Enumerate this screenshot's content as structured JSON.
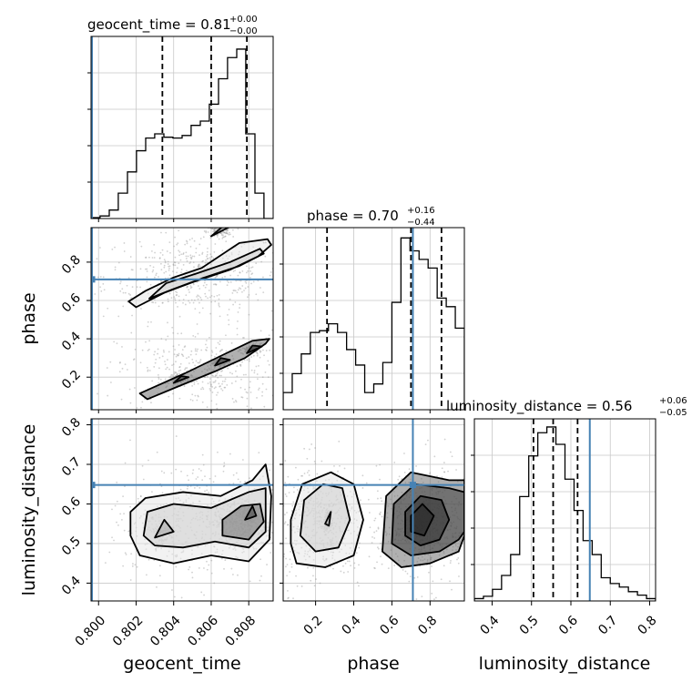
{
  "chart_data": {
    "type": "corner",
    "parameters": [
      "geocent_time",
      "phase",
      "luminosity_distance"
    ],
    "axis_labels": {
      "geocent_time": "geocent_time",
      "phase": "phase",
      "luminosity_distance": "luminosity_distance"
    },
    "ranges": {
      "geocent_time": [
        0.7996,
        0.8093
      ],
      "phase": [
        0.03,
        0.98
      ],
      "luminosity_distance": [
        0.355,
        0.815
      ]
    },
    "ticks": {
      "geocent_time": [
        0.8,
        0.802,
        0.804,
        0.806,
        0.808
      ],
      "phase": [
        0.2,
        0.4,
        0.6,
        0.8
      ],
      "luminosity_distance": [
        0.4,
        0.5,
        0.6,
        0.7,
        0.8
      ]
    },
    "tick_labels": {
      "geocent_time": [
        "0.800",
        "0.802",
        "0.804",
        "0.806",
        "0.808"
      ],
      "phase": [
        "0.2",
        "0.4",
        "0.6",
        "0.8"
      ],
      "luminosity_distance": [
        "0.4",
        "0.5",
        "0.6",
        "0.7",
        "0.8"
      ]
    },
    "injection": {
      "geocent_time": 0.79965,
      "phase": 0.71,
      "luminosity_distance": 0.648
    },
    "injection_color": "#4682b4",
    "titles": {
      "geocent_time": {
        "prefix": "geocent_time = 0.81",
        "sup": "+0.00",
        "sub": "−0.00"
      },
      "phase": {
        "prefix": "phase = 0.70",
        "sup": "+0.16",
        "sub": "−0.44"
      },
      "luminosity_distance": {
        "prefix": "luminosity_distance = 0.56",
        "sup": "+0.06",
        "sub": "−0.05"
      }
    },
    "quantiles": {
      "geocent_time": [
        0.8034,
        0.806,
        0.8079
      ],
      "phase": [
        0.26,
        0.7,
        0.86
      ],
      "luminosity_distance": [
        0.505,
        0.555,
        0.617
      ]
    },
    "histograms": {
      "geocent_time": {
        "edges": [
          0.7996,
          0.80008,
          0.80057,
          0.80105,
          0.80154,
          0.80202,
          0.80251,
          0.80299,
          0.80348,
          0.80396,
          0.80445,
          0.80493,
          0.80542,
          0.8059,
          0.80639,
          0.80687,
          0.80736,
          0.80784,
          0.80833,
          0.80881,
          0.8093
        ],
        "counts": [
          1,
          3,
          10,
          30,
          55,
          80,
          95,
          100,
          96,
          95,
          98,
          110,
          115,
          135,
          165,
          190,
          200,
          100,
          30,
          0
        ]
      },
      "phase": {
        "edges": [
          0.03,
          0.0775,
          0.125,
          0.1725,
          0.22,
          0.2675,
          0.315,
          0.3625,
          0.41,
          0.4575,
          0.505,
          0.5525,
          0.6,
          0.6475,
          0.695,
          0.7425,
          0.79,
          0.8375,
          0.885,
          0.9325,
          0.98
        ],
        "counts": [
          20,
          42,
          65,
          90,
          92,
          100,
          90,
          70,
          52,
          20,
          30,
          55,
          125,
          200,
          185,
          175,
          165,
          130,
          120,
          95
        ]
      },
      "luminosity_distance": {
        "edges": [
          0.355,
          0.378,
          0.401,
          0.424,
          0.447,
          0.47,
          0.493,
          0.516,
          0.539,
          0.562,
          0.585,
          0.608,
          0.631,
          0.654,
          0.677,
          0.7,
          0.723,
          0.746,
          0.769,
          0.792,
          0.815
        ],
        "counts": [
          2,
          4,
          10,
          22,
          40,
          90,
          125,
          145,
          150,
          135,
          105,
          78,
          52,
          40,
          20,
          15,
          12,
          8,
          5,
          2
        ]
      }
    },
    "histogram_ymax": {
      "geocent_time": 215,
      "phase": 212,
      "luminosity_distance": 157
    },
    "contours": {
      "phase__geocent_time": [
        [
          [
            0.802,
            0.565
          ],
          [
            0.8035,
            0.64
          ],
          [
            0.805,
            0.695
          ],
          [
            0.807,
            0.76
          ],
          [
            0.8085,
            0.83
          ],
          [
            0.8092,
            0.89
          ],
          [
            0.809,
            0.92
          ],
          [
            0.8075,
            0.9
          ],
          [
            0.8055,
            0.77
          ],
          [
            0.804,
            0.72
          ],
          [
            0.8025,
            0.65
          ],
          [
            0.8016,
            0.595
          ],
          [
            0.802,
            0.565
          ]
        ],
        [
          [
            0.8027,
            0.61
          ],
          [
            0.804,
            0.66
          ],
          [
            0.8055,
            0.715
          ],
          [
            0.8075,
            0.78
          ],
          [
            0.8088,
            0.845
          ],
          [
            0.8086,
            0.87
          ],
          [
            0.807,
            0.8
          ],
          [
            0.8052,
            0.74
          ],
          [
            0.8036,
            0.69
          ],
          [
            0.8027,
            0.61
          ]
        ],
        [
          [
            0.806,
            0.935
          ],
          [
            0.807,
            0.985
          ],
          [
            0.8066,
            0.985
          ],
          [
            0.806,
            0.935
          ]
        ],
        [
          [
            0.8026,
            0.085
          ],
          [
            0.8042,
            0.15
          ],
          [
            0.8062,
            0.23
          ],
          [
            0.8078,
            0.3
          ],
          [
            0.8089,
            0.375
          ],
          [
            0.8091,
            0.4
          ],
          [
            0.8082,
            0.39
          ],
          [
            0.8066,
            0.315
          ],
          [
            0.8046,
            0.22
          ],
          [
            0.803,
            0.15
          ],
          [
            0.8022,
            0.115
          ],
          [
            0.8026,
            0.085
          ]
        ],
        [
          [
            0.804,
            0.17
          ],
          [
            0.8048,
            0.2
          ],
          [
            0.8044,
            0.205
          ],
          [
            0.804,
            0.17
          ]
        ],
        [
          [
            0.8062,
            0.26
          ],
          [
            0.807,
            0.29
          ],
          [
            0.8065,
            0.3
          ],
          [
            0.8062,
            0.26
          ]
        ],
        [
          [
            0.8079,
            0.325
          ],
          [
            0.8087,
            0.36
          ],
          [
            0.8082,
            0.365
          ],
          [
            0.8079,
            0.325
          ]
        ]
      ],
      "luminosity_distance__geocent_time": [
        [
          [
            0.8017,
            0.52
          ],
          [
            0.8022,
            0.47
          ],
          [
            0.804,
            0.45
          ],
          [
            0.806,
            0.47
          ],
          [
            0.808,
            0.455
          ],
          [
            0.8091,
            0.51
          ],
          [
            0.8092,
            0.62
          ],
          [
            0.8089,
            0.7
          ],
          [
            0.8082,
            0.66
          ],
          [
            0.8065,
            0.62
          ],
          [
            0.8045,
            0.63
          ],
          [
            0.8025,
            0.615
          ],
          [
            0.8017,
            0.58
          ],
          [
            0.8017,
            0.52
          ]
        ],
        [
          [
            0.8024,
            0.52
          ],
          [
            0.803,
            0.495
          ],
          [
            0.8045,
            0.49
          ],
          [
            0.8062,
            0.505
          ],
          [
            0.808,
            0.49
          ],
          [
            0.8089,
            0.53
          ],
          [
            0.8089,
            0.64
          ],
          [
            0.808,
            0.63
          ],
          [
            0.806,
            0.59
          ],
          [
            0.804,
            0.6
          ],
          [
            0.8026,
            0.58
          ],
          [
            0.8024,
            0.52
          ]
        ],
        [
          [
            0.803,
            0.515
          ],
          [
            0.804,
            0.53
          ],
          [
            0.8035,
            0.56
          ],
          [
            0.803,
            0.515
          ]
        ],
        [
          [
            0.8066,
            0.52
          ],
          [
            0.808,
            0.51
          ],
          [
            0.8088,
            0.555
          ],
          [
            0.8086,
            0.6
          ],
          [
            0.8076,
            0.595
          ],
          [
            0.8066,
            0.56
          ],
          [
            0.8066,
            0.52
          ]
        ],
        [
          [
            0.8078,
            0.56
          ],
          [
            0.8084,
            0.57
          ],
          [
            0.8082,
            0.595
          ],
          [
            0.8078,
            0.56
          ]
        ]
      ],
      "luminosity_distance__phase": [
        [
          [
            0.07,
            0.5
          ],
          [
            0.1,
            0.45
          ],
          [
            0.25,
            0.44
          ],
          [
            0.4,
            0.47
          ],
          [
            0.45,
            0.56
          ],
          [
            0.4,
            0.65
          ],
          [
            0.28,
            0.68
          ],
          [
            0.13,
            0.65
          ],
          [
            0.07,
            0.56
          ],
          [
            0.07,
            0.5
          ]
        ],
        [
          [
            0.12,
            0.52
          ],
          [
            0.2,
            0.48
          ],
          [
            0.32,
            0.49
          ],
          [
            0.38,
            0.56
          ],
          [
            0.34,
            0.64
          ],
          [
            0.24,
            0.65
          ],
          [
            0.14,
            0.61
          ],
          [
            0.12,
            0.52
          ]
        ],
        [
          [
            0.25,
            0.55
          ],
          [
            0.27,
            0.545
          ],
          [
            0.28,
            0.58
          ],
          [
            0.25,
            0.55
          ]
        ],
        [
          [
            0.55,
            0.48
          ],
          [
            0.65,
            0.44
          ],
          [
            0.8,
            0.45
          ],
          [
            0.95,
            0.48
          ],
          [
            0.98,
            0.52
          ],
          [
            0.98,
            0.66
          ],
          [
            0.9,
            0.66
          ],
          [
            0.7,
            0.68
          ],
          [
            0.57,
            0.62
          ],
          [
            0.55,
            0.48
          ]
        ],
        [
          [
            0.6,
            0.5
          ],
          [
            0.7,
            0.47
          ],
          [
            0.85,
            0.48
          ],
          [
            0.95,
            0.51
          ],
          [
            0.98,
            0.53
          ],
          [
            0.98,
            0.63
          ],
          [
            0.9,
            0.64
          ],
          [
            0.72,
            0.65
          ],
          [
            0.61,
            0.6
          ],
          [
            0.6,
            0.5
          ]
        ],
        [
          [
            0.67,
            0.52
          ],
          [
            0.75,
            0.495
          ],
          [
            0.85,
            0.51
          ],
          [
            0.9,
            0.56
          ],
          [
            0.86,
            0.61
          ],
          [
            0.75,
            0.62
          ],
          [
            0.67,
            0.58
          ],
          [
            0.67,
            0.52
          ]
        ],
        [
          [
            0.7,
            0.53
          ],
          [
            0.77,
            0.52
          ],
          [
            0.82,
            0.57
          ],
          [
            0.76,
            0.6
          ],
          [
            0.7,
            0.57
          ],
          [
            0.7,
            0.53
          ]
        ]
      ]
    }
  }
}
